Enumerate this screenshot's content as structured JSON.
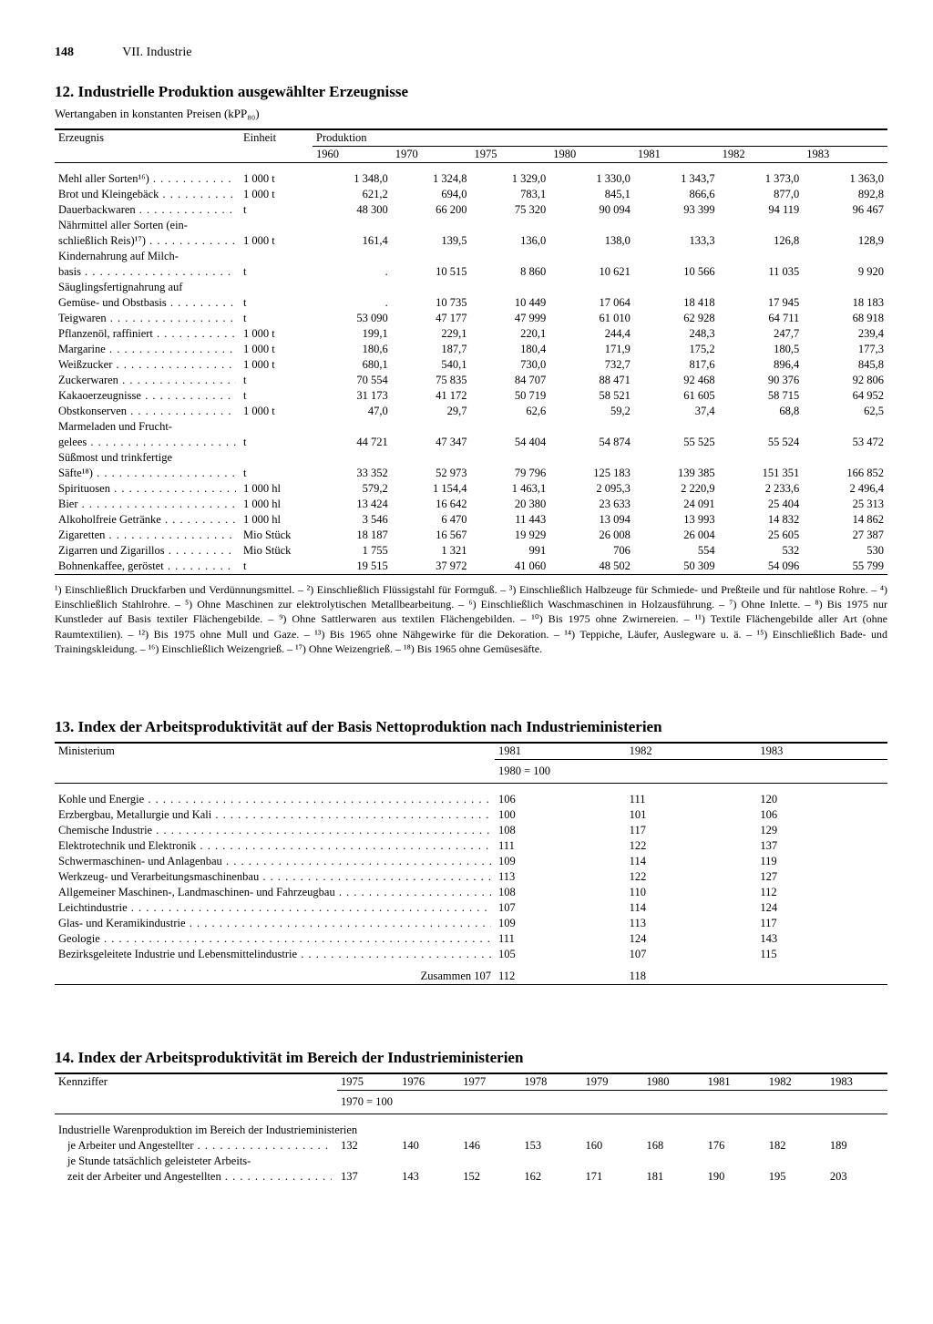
{
  "page": {
    "number": "148",
    "chapter": "VII. Industrie"
  },
  "t12": {
    "title": "12. Industrielle Produktion ausgewählter Erzeugnisse",
    "subtitle": "Wertangaben in konstanten Preisen (kPP₈₀)",
    "col_product": "Erzeugnis",
    "col_unit": "Einheit",
    "col_prod": "Produktion",
    "years": [
      "1960",
      "1970",
      "1975",
      "1980",
      "1981",
      "1982",
      "1983"
    ],
    "rows": [
      {
        "l": "Mehl aller Sorten¹⁶)",
        "u": "1 000 t",
        "v": [
          "1 348,0",
          "1 324,8",
          "1 329,0",
          "1 330,0",
          "1 343,7",
          "1 373,0",
          "1 363,0"
        ]
      },
      {
        "l": "Brot und Kleingebäck",
        "u": "1 000 t",
        "v": [
          "621,2",
          "694,0",
          "783,1",
          "845,1",
          "866,6",
          "877,0",
          "892,8"
        ]
      },
      {
        "l": "Dauerbackwaren",
        "u": "t",
        "v": [
          "48 300",
          "66 200",
          "75 320",
          "90 094",
          "93 399",
          "94 119",
          "96 467"
        ]
      },
      {
        "l": "Nährmittel aller Sorten (ein-",
        "u": "",
        "v": [
          "",
          "",
          "",
          "",
          "",
          "",
          ""
        ],
        "nodots": true
      },
      {
        "l": "schließlich Reis)¹⁷)",
        "u": "1 000 t",
        "v": [
          "161,4",
          "139,5",
          "136,0",
          "138,0",
          "133,3",
          "126,8",
          "128,9"
        ]
      },
      {
        "l": "Kindernahrung auf Milch-",
        "u": "",
        "v": [
          "",
          "",
          "",
          "",
          "",
          "",
          ""
        ],
        "nodots": true
      },
      {
        "l": "basis",
        "u": "t",
        "v": [
          ".",
          "10 515",
          "8 860",
          "10 621",
          "10 566",
          "11 035",
          "9 920"
        ]
      },
      {
        "l": "Säuglingsfertignahrung auf",
        "u": "",
        "v": [
          "",
          "",
          "",
          "",
          "",
          "",
          ""
        ],
        "nodots": true
      },
      {
        "l": "Gemüse- und Obstbasis",
        "u": "t",
        "v": [
          ".",
          "10 735",
          "10 449",
          "17 064",
          "18 418",
          "17 945",
          "18 183"
        ]
      },
      {
        "l": "Teigwaren",
        "u": "t",
        "v": [
          "53 090",
          "47 177",
          "47 999",
          "61 010",
          "62 928",
          "64 711",
          "68 918"
        ]
      },
      {
        "l": "Pflanzenöl, raffiniert",
        "u": "1 000 t",
        "v": [
          "199,1",
          "229,1",
          "220,1",
          "244,4",
          "248,3",
          "247,7",
          "239,4"
        ]
      },
      {
        "l": "Margarine",
        "u": "1 000 t",
        "v": [
          "180,6",
          "187,7",
          "180,4",
          "171,9",
          "175,2",
          "180,5",
          "177,3"
        ]
      },
      {
        "l": "Weißzucker",
        "u": "1 000 t",
        "v": [
          "680,1",
          "540,1",
          "730,0",
          "732,7",
          "817,6",
          "896,4",
          "845,8"
        ]
      },
      {
        "l": "Zuckerwaren",
        "u": "t",
        "v": [
          "70 554",
          "75 835",
          "84 707",
          "88 471",
          "92 468",
          "90 376",
          "92 806"
        ]
      },
      {
        "l": "Kakaoerzeugnisse",
        "u": "t",
        "v": [
          "31 173",
          "41 172",
          "50 719",
          "58 521",
          "61 605",
          "58 715",
          "64 952"
        ]
      },
      {
        "l": "Obstkonserven",
        "u": "1 000 t",
        "v": [
          "47,0",
          "29,7",
          "62,6",
          "59,2",
          "37,4",
          "68,8",
          "62,5"
        ]
      },
      {
        "l": "Marmeladen und Frucht-",
        "u": "",
        "v": [
          "",
          "",
          "",
          "",
          "",
          "",
          ""
        ],
        "nodots": true
      },
      {
        "l": "gelees",
        "u": "t",
        "v": [
          "44 721",
          "47 347",
          "54 404",
          "54 874",
          "55 525",
          "55 524",
          "53 472"
        ]
      },
      {
        "l": "Süßmost und trinkfertige",
        "u": "",
        "v": [
          "",
          "",
          "",
          "",
          "",
          "",
          ""
        ],
        "nodots": true
      },
      {
        "l": "Säfte¹⁸)",
        "u": "t",
        "v": [
          "33 352",
          "52 973",
          "79 796",
          "125 183",
          "139 385",
          "151 351",
          "166 852"
        ]
      },
      {
        "l": "Spirituosen",
        "u": "1 000 hl",
        "v": [
          "579,2",
          "1 154,4",
          "1 463,1",
          "2 095,3",
          "2 220,9",
          "2 233,6",
          "2 496,4"
        ]
      },
      {
        "l": "Bier",
        "u": "1 000 hl",
        "v": [
          "13 424",
          "16 642",
          "20 380",
          "23 633",
          "24 091",
          "25 404",
          "25 313"
        ]
      },
      {
        "l": "Alkoholfreie Getränke",
        "u": "1 000 hl",
        "v": [
          "3 546",
          "6 470",
          "11 443",
          "13 094",
          "13 993",
          "14 832",
          "14 862"
        ]
      },
      {
        "l": "Zigaretten",
        "u": "Mio Stück",
        "v": [
          "18 187",
          "16 567",
          "19 929",
          "26 008",
          "26 004",
          "25 605",
          "27 387"
        ]
      },
      {
        "l": "Zigarren und Zigarillos",
        "u": "Mio Stück",
        "v": [
          "1 755",
          "1 321",
          "991",
          "706",
          "554",
          "532",
          "530"
        ]
      },
      {
        "l": "Bohnenkaffee, geröstet",
        "u": "t",
        "v": [
          "19 515",
          "37 972",
          "41 060",
          "48 502",
          "50 309",
          "54 096",
          "55 799"
        ]
      }
    ],
    "footnotes": "¹) Einschließlich Druckfarben und Verdünnungsmittel. – ²) Einschließlich Flüssigstahl für Formguß. – ³) Einschließlich Halbzeuge für Schmiede- und Preßteile und für nahtlose Rohre. – ⁴) Einschließlich Stahlrohre. – ⁵) Ohne Maschinen zur elektrolytischen Metallbearbeitung. – ⁶) Einschließlich Waschmaschinen in Holzausführung. – ⁷) Ohne Inlette. – ⁸) Bis 1975 nur Kunstleder auf Basis textiler Flächengebilde. – ⁹) Ohne Sattlerwaren aus textilen Flächengebilden. – ¹⁰) Bis 1975 ohne Zwirnereien. – ¹¹) Textile Flächengebilde aller Art (ohne Raumtextilien). – ¹²) Bis 1975 ohne Mull und Gaze. – ¹³) Bis 1965 ohne Nähgewirke für die Dekoration. – ¹⁴) Teppiche, Läufer, Auslegware u. ä. – ¹⁵) Einschließlich Bade- und Trainingskleidung. – ¹⁶) Einschließlich Weizengrieß. – ¹⁷) Ohne Weizengrieß. – ¹⁸) Bis 1965 ohne Gemüsesäfte."
  },
  "t13": {
    "title": "13. Index der Arbeitsproduktivität auf der Basis Nettoproduktion nach Industrieministerien",
    "col_ministry": "Ministerium",
    "years": [
      "1981",
      "1982",
      "1983"
    ],
    "baseline": "1980 = 100",
    "rows": [
      {
        "l": "Kohle und Energie",
        "v": [
          "106",
          "111",
          "120"
        ]
      },
      {
        "l": "Erzbergbau, Metallurgie und Kali",
        "v": [
          "100",
          "101",
          "106"
        ]
      },
      {
        "l": "Chemische Industrie",
        "v": [
          "108",
          "117",
          "129"
        ]
      },
      {
        "l": "Elektrotechnik und Elektronik",
        "v": [
          "111",
          "122",
          "137"
        ]
      },
      {
        "l": "Schwermaschinen- und Anlagenbau",
        "v": [
          "109",
          "114",
          "119"
        ]
      },
      {
        "l": "Werkzeug- und Verarbeitungsmaschinenbau",
        "v": [
          "113",
          "122",
          "127"
        ]
      },
      {
        "l": "Allgemeiner Maschinen-, Landmaschinen- und Fahrzeugbau",
        "v": [
          "108",
          "110",
          "112"
        ]
      },
      {
        "l": "Leichtindustrie",
        "v": [
          "107",
          "114",
          "124"
        ]
      },
      {
        "l": "Glas- und Keramikindustrie",
        "v": [
          "109",
          "113",
          "117"
        ]
      },
      {
        "l": "Geologie",
        "v": [
          "111",
          "124",
          "143"
        ]
      },
      {
        "l": "Bezirksgeleitete Industrie und Lebensmittelindustrie",
        "v": [
          "105",
          "107",
          "115"
        ]
      }
    ],
    "sum_label": "Zusammen",
    "sum": [
      "107",
      "112",
      "118"
    ]
  },
  "t14": {
    "title": "14. Index der Arbeitsproduktivität im Bereich der Industrieministerien",
    "col_key": "Kennziffer",
    "years": [
      "1975",
      "1976",
      "1977",
      "1978",
      "1979",
      "1980",
      "1981",
      "1982",
      "1983"
    ],
    "baseline": "1970 = 100",
    "intro": "Industrielle Warenproduktion im Bereich der Industrieministerien",
    "rows": [
      {
        "l": "je Arbeiter und Angestellter",
        "v": [
          "132",
          "140",
          "146",
          "153",
          "160",
          "168",
          "176",
          "182",
          "189"
        ]
      },
      {
        "l": "je Stunde tatsächlich geleisteter Arbeits-",
        "v": [
          "",
          "",
          "",
          "",
          "",
          "",
          "",
          "",
          ""
        ],
        "nodots": true
      },
      {
        "l": "zeit der Arbeiter und Angestellten",
        "v": [
          "137",
          "143",
          "152",
          "162",
          "171",
          "181",
          "190",
          "195",
          "203"
        ]
      }
    ]
  }
}
